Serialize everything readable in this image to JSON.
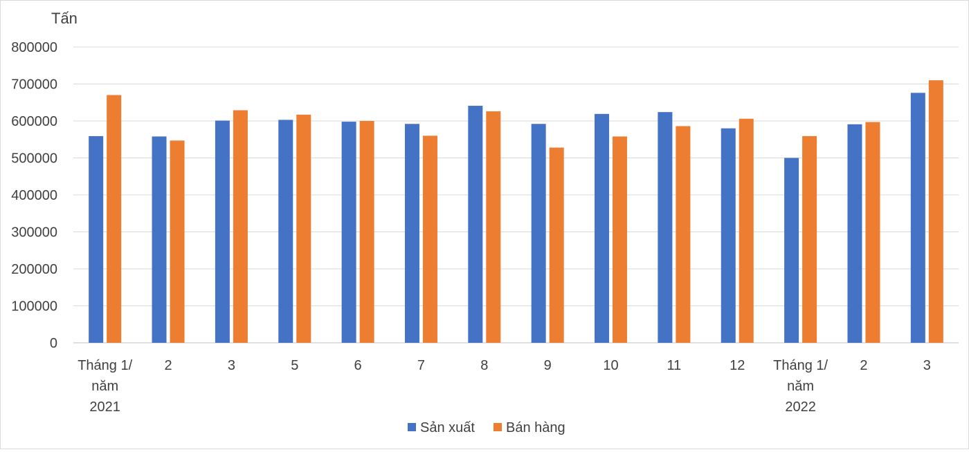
{
  "chart_data": {
    "type": "bar",
    "title": "",
    "ylabel": "Tấn",
    "xlabel": "",
    "ylim": [
      0,
      800000
    ],
    "yticks": [
      0,
      100000,
      200000,
      300000,
      400000,
      500000,
      600000,
      700000,
      800000
    ],
    "ytick_labels": [
      "0",
      "100000",
      "200000",
      "300000",
      "400000",
      "500000",
      "600000",
      "700000",
      "800000"
    ],
    "grid": true,
    "legend_position": "bottom-center",
    "categories": [
      [
        "Tháng 1/",
        "năm",
        "2021"
      ],
      [
        "2"
      ],
      [
        "3"
      ],
      [
        "5"
      ],
      [
        "6"
      ],
      [
        "7"
      ],
      [
        "8"
      ],
      [
        "9"
      ],
      [
        "10"
      ],
      [
        "11"
      ],
      [
        "12"
      ],
      [
        "Tháng 1/",
        "năm",
        "2022"
      ],
      [
        "2"
      ],
      [
        "3"
      ]
    ],
    "series": [
      {
        "name": "Sản xuất",
        "color": "#4472c4",
        "values": [
          559000,
          558000,
          601000,
          603000,
          598000,
          592000,
          641000,
          592000,
          619000,
          624000,
          580000,
          500000,
          591000,
          676000
        ]
      },
      {
        "name": "Bán hàng",
        "color": "#ed7d31",
        "values": [
          670000,
          547000,
          629000,
          617000,
          600000,
          560000,
          626000,
          528000,
          558000,
          586000,
          606000,
          559000,
          597000,
          710000
        ]
      }
    ]
  }
}
